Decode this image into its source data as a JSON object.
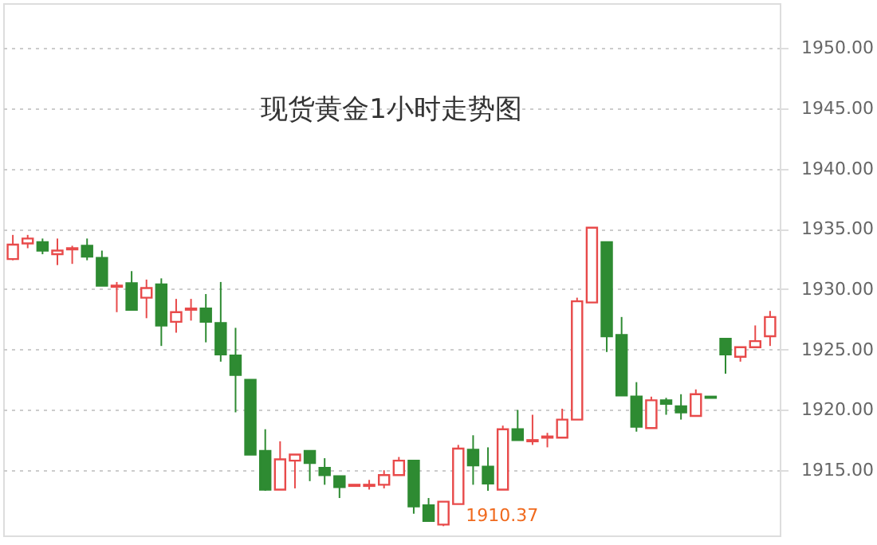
{
  "chart_data": {
    "type": "candlestick",
    "title": "现货黄金1小时走势图",
    "categories": [
      null,
      null,
      null,
      null,
      null,
      null,
      null,
      null,
      null,
      null,
      null,
      null,
      null,
      null,
      null,
      null,
      null,
      null,
      null,
      null,
      null,
      null,
      null,
      null,
      null,
      null,
      null,
      null,
      null,
      null,
      null,
      null,
      null,
      null,
      null,
      null,
      null,
      null,
      null,
      null,
      null,
      null,
      null,
      null,
      null,
      null,
      null,
      null,
      null,
      null,
      null,
      null
    ],
    "ohlc": [
      [
        1932.5,
        1934.5,
        1932.4,
        1933.7
      ],
      [
        1933.8,
        1934.5,
        1933.4,
        1934.2
      ],
      [
        1933.9,
        1934.2,
        1932.9,
        1933.2
      ],
      [
        1932.9,
        1934.2,
        1932.0,
        1933.2
      ],
      [
        1933.3,
        1933.6,
        1932.1,
        1933.4
      ],
      [
        1933.6,
        1934.2,
        1932.4,
        1932.7
      ],
      [
        1932.6,
        1933.2,
        1930.3,
        1930.3
      ],
      [
        1930.2,
        1930.6,
        1928.1,
        1930.3
      ],
      [
        1930.5,
        1931.5,
        1928.3,
        1928.3
      ],
      [
        1929.3,
        1930.8,
        1927.6,
        1930.1
      ],
      [
        1930.4,
        1930.9,
        1925.3,
        1927.0
      ],
      [
        1927.3,
        1929.2,
        1926.4,
        1928.1
      ],
      [
        1928.3,
        1929.2,
        1927.4,
        1928.4
      ],
      [
        1928.4,
        1929.6,
        1925.6,
        1927.3
      ],
      [
        1927.2,
        1930.6,
        1924.0,
        1924.6
      ],
      [
        1924.5,
        1926.8,
        1919.8,
        1922.9
      ],
      [
        1922.5,
        1922.5,
        1916.3,
        1916.3
      ],
      [
        1916.6,
        1918.4,
        1913.3,
        1913.4
      ],
      [
        1913.4,
        1917.4,
        1913.4,
        1915.9
      ],
      [
        1915.8,
        1916.3,
        1913.5,
        1916.3
      ],
      [
        1916.6,
        1916.6,
        1914.1,
        1915.6
      ],
      [
        1915.2,
        1916.0,
        1913.8,
        1914.6
      ],
      [
        1914.5,
        1914.5,
        1912.7,
        1913.6
      ],
      [
        1913.7,
        1913.8,
        1913.7,
        1913.8
      ],
      [
        1913.7,
        1914.2,
        1913.4,
        1913.8
      ],
      [
        1913.8,
        1915.0,
        1913.5,
        1914.6
      ],
      [
        1914.6,
        1916.1,
        1914.6,
        1915.8
      ],
      [
        1915.8,
        1915.8,
        1911.4,
        1912.0
      ],
      [
        1912.1,
        1912.7,
        1910.8,
        1910.8
      ],
      [
        1910.5,
        1912.4,
        1910.37,
        1912.4
      ],
      [
        1912.2,
        1917.1,
        1912.2,
        1916.8
      ],
      [
        1916.7,
        1917.9,
        1913.8,
        1915.4
      ],
      [
        1915.3,
        1916.9,
        1913.3,
        1913.9
      ],
      [
        1913.4,
        1918.7,
        1913.4,
        1918.4
      ],
      [
        1918.4,
        1920.0,
        1917.5,
        1917.5
      ],
      [
        1917.4,
        1919.6,
        1917.1,
        1917.5
      ],
      [
        1917.7,
        1918.1,
        1916.9,
        1917.8
      ],
      [
        1917.7,
        1920.1,
        1917.7,
        1919.2
      ],
      [
        1919.2,
        1929.3,
        1919.2,
        1929.0
      ],
      [
        1928.9,
        1935.1,
        1928.9,
        1935.1
      ],
      [
        1933.9,
        1933.9,
        1924.8,
        1926.1
      ],
      [
        1926.2,
        1927.7,
        1921.2,
        1921.2
      ],
      [
        1921.1,
        1922.3,
        1918.2,
        1918.6
      ],
      [
        1918.5,
        1921.1,
        1918.5,
        1920.8
      ],
      [
        1920.8,
        1921.0,
        1919.6,
        1920.5
      ],
      [
        1920.3,
        1921.3,
        1919.2,
        1919.8
      ],
      [
        1919.5,
        1921.7,
        1919.5,
        1921.3
      ],
      [
        1921.1,
        1921.1,
        1921.0,
        1921.0
      ],
      [
        1925.9,
        1925.9,
        1923.0,
        1924.6
      ],
      [
        1924.4,
        1925.2,
        1924.0,
        1925.2
      ],
      [
        1925.2,
        1927.0,
        1925.2,
        1925.7
      ],
      [
        1926.1,
        1928.2,
        1925.3,
        1927.7
      ]
    ],
    "colors": [
      "#e84a4a",
      "#e84a4a",
      "#2e8b32",
      "#e84a4a",
      "#e84a4a",
      "#2e8b32",
      "#2e8b32",
      "#e84a4a",
      "#2e8b32",
      "#e84a4a",
      "#2e8b32",
      "#e84a4a",
      "#e84a4a",
      "#2e8b32",
      "#2e8b32",
      "#2e8b32",
      "#2e8b32",
      "#2e8b32",
      "#e84a4a",
      "#e84a4a",
      "#2e8b32",
      "#2e8b32",
      "#2e8b32",
      "#e84a4a",
      "#e84a4a",
      "#e84a4a",
      "#e84a4a",
      "#2e8b32",
      "#2e8b32",
      "#e84a4a",
      "#e84a4a",
      "#2e8b32",
      "#2e8b32",
      "#e84a4a",
      "#2e8b32",
      "#e84a4a",
      "#e84a4a",
      "#e84a4a",
      "#e84a4a",
      "#e84a4a",
      "#2e8b32",
      "#2e8b32",
      "#2e8b32",
      "#e84a4a",
      "#2e8b32",
      "#2e8b32",
      "#e84a4a",
      "#2e8b32",
      "#2e8b32",
      "#e84a4a",
      "#e84a4a",
      "#e84a4a"
    ],
    "ylim": [
      1909.6,
      1953.7
    ],
    "yticks": [
      {
        "value": 1915,
        "label": "1915.00"
      },
      {
        "value": 1920,
        "label": "1920.00"
      },
      {
        "value": 1925,
        "label": "1925.00"
      },
      {
        "value": 1930,
        "label": "1930.00"
      },
      {
        "value": 1935,
        "label": "1935.00"
      },
      {
        "value": 1940,
        "label": "1940.00"
      },
      {
        "value": 1945,
        "label": "1945.00"
      },
      {
        "value": 1950,
        "label": "1950.00"
      }
    ],
    "tick_labels": "y",
    "grid": "y",
    "annotations": [
      "1910.37"
    ]
  }
}
